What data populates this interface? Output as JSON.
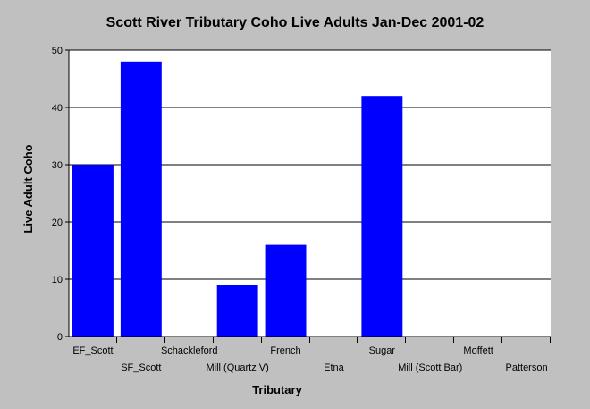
{
  "chart_data": {
    "type": "bar",
    "title": "Scott River Tributary Coho Live Adults Jan-Dec 2001-02",
    "xlabel": "Tributary",
    "ylabel": "Live Adult Coho",
    "categories": [
      "EF_Scott",
      "SF_Scott",
      "Schackleford",
      "Mill (Quartz V)",
      "French",
      "Etna",
      "Sugar",
      "Mill (Scott Bar)",
      "Moffett",
      "Patterson"
    ],
    "values": [
      30,
      48,
      0,
      9,
      16,
      0,
      42,
      0,
      0,
      0
    ],
    "ylim": [
      0,
      50
    ],
    "yticks": [
      0,
      10,
      20,
      30,
      40,
      50
    ],
    "grid": true,
    "bar_color": "#0000ff",
    "background_color": "#c0c0c0",
    "plot_background_color": "#ffffff"
  }
}
